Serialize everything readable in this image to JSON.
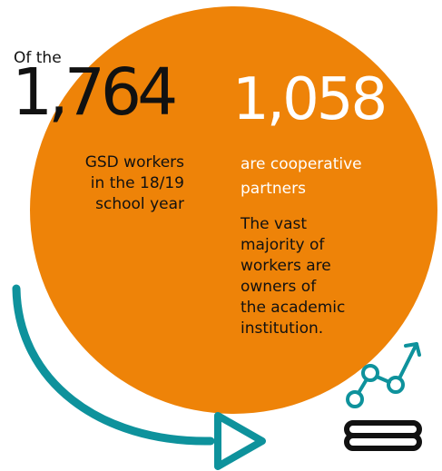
{
  "intro": "Of the",
  "total": {
    "value": "1,764",
    "description": [
      "GSD workers",
      "in the 18/19",
      "school year"
    ]
  },
  "cooperative": {
    "value": "1,058",
    "subtitle": [
      "are cooperative",
      "partners"
    ],
    "description": [
      "The vast",
      "majority of",
      "workers are",
      "owners of",
      "the academic",
      "institution."
    ]
  },
  "colors": {
    "circle": "#ee8308",
    "accent": "#0e929c",
    "text": "#111111",
    "highlight": "#ffffff"
  },
  "icons": [
    "curved-arrow-icon",
    "growth-chart-icon",
    "stack-lines-icon"
  ]
}
